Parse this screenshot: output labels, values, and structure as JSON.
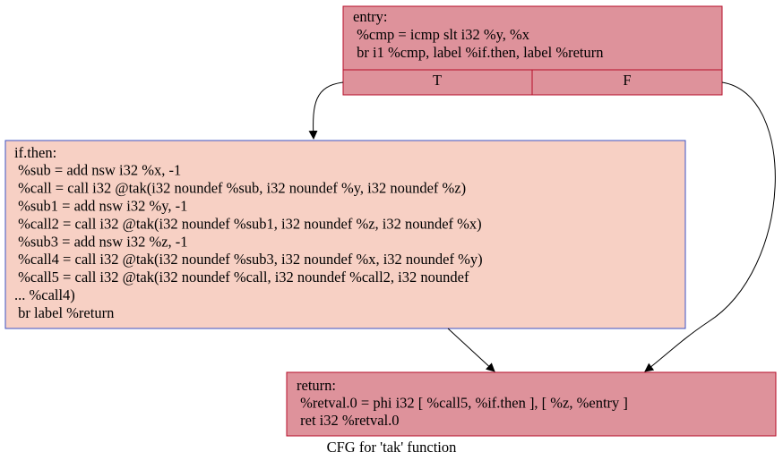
{
  "nodes": [
    {
      "lines": [
        "entry:",
        " %cmp = icmp slt i32 %y, %x",
        " br i1 %cmp, label %if.then, label %return"
      ],
      "ports": [
        "T",
        "F"
      ]
    },
    {
      "lines": [
        "if.then:",
        " %sub = add nsw i32 %x, -1",
        " %call = call i32 @tak(i32 noundef %sub, i32 noundef %y, i32 noundef %z)",
        " %sub1 = add nsw i32 %y, -1",
        " %call2 = call i32 @tak(i32 noundef %sub1, i32 noundef %z, i32 noundef %x)",
        " %sub3 = add nsw i32 %z, -1",
        " %call4 = call i32 @tak(i32 noundef %sub3, i32 noundef %x, i32 noundef %y)",
        " %call5 = call i32 @tak(i32 noundef %call, i32 noundef %call2, i32 noundef",
        "... %call4)",
        " br label %return"
      ]
    },
    {
      "lines": [
        "return:",
        " %retval.0 = phi i32 [ %call5, %if.then ], [ %z, %entry ]",
        " ret i32 %retval.0"
      ]
    }
  ],
  "caption": "CFG for 'tak' function"
}
